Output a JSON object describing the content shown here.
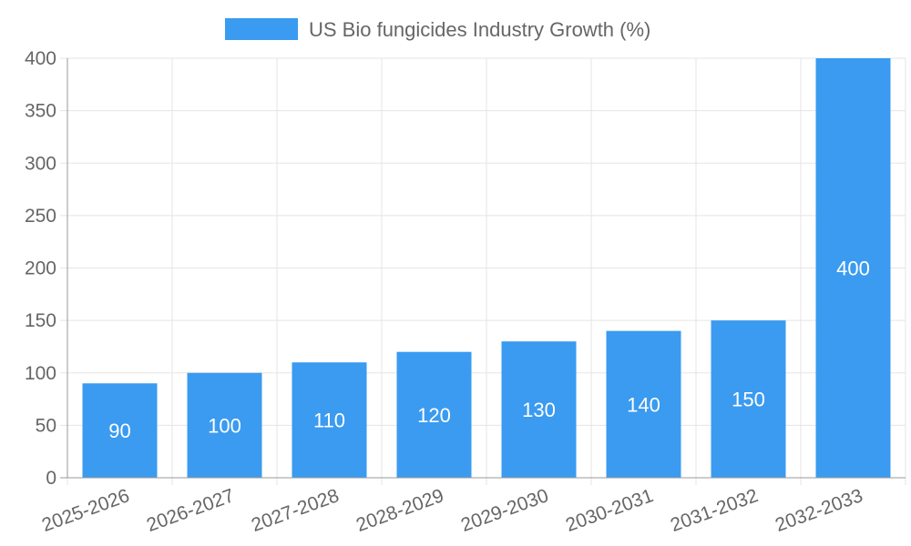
{
  "chart_data": {
    "type": "bar",
    "legend": {
      "position": "top",
      "entries": [
        "US Bio fungicides Industry Growth (%)"
      ]
    },
    "categories": [
      "2025-2026",
      "2026-2027",
      "2027-2028",
      "2028-2029",
      "2029-2030",
      "2030-2031",
      "2031-2032",
      "2032-2033"
    ],
    "series": [
      {
        "name": "US Bio fungicides Industry Growth (%)",
        "values": [
          90,
          100,
          110,
          120,
          130,
          140,
          150,
          400
        ],
        "color": "#3a9bf0"
      }
    ],
    "data_labels": [
      "90",
      "100",
      "110",
      "120",
      "130",
      "140",
      "150",
      "400"
    ],
    "y_ticks": [
      "0",
      "50",
      "100",
      "150",
      "200",
      "250",
      "300",
      "350",
      "400"
    ],
    "ylim": [
      0,
      400
    ],
    "grid": true
  }
}
